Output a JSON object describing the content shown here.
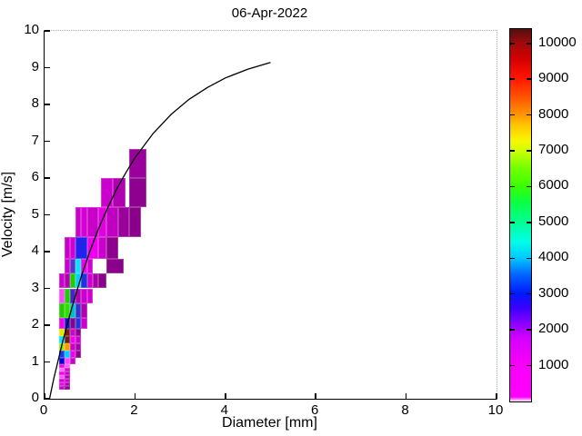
{
  "figure": {
    "title": "06-Apr-2022",
    "xlabel": "Diameter [mm]",
    "ylabel": "Velocity [m/s]"
  },
  "chart_data": {
    "type": "heatmap",
    "title": "06-Apr-2022",
    "xlabel": "Diameter [mm]",
    "ylabel": "Velocity [m/s]",
    "xlim": [
      0,
      10
    ],
    "ylim": [
      0,
      10
    ],
    "x_ticks": [
      0,
      2,
      4,
      6,
      8,
      10
    ],
    "y_ticks": [
      0,
      1,
      2,
      3,
      4,
      5,
      6,
      7,
      8,
      9,
      10
    ],
    "grid": false,
    "legend": "none",
    "colorbar": {
      "position": "right",
      "ticks": [
        1000,
        2000,
        3000,
        4000,
        5000,
        6000,
        7000,
        8000,
        9000,
        10000
      ],
      "vmin": 0,
      "vmax": 10400,
      "colormap_stops": [
        {
          "pos": 0.0,
          "color": "#ffffff"
        },
        {
          "pos": 0.012,
          "color": "#ff00ff"
        },
        {
          "pos": 0.1,
          "color": "#f800f8"
        },
        {
          "pos": 0.17,
          "color": "#d400ff"
        },
        {
          "pos": 0.21,
          "color": "#8800ff"
        },
        {
          "pos": 0.25,
          "color": "#3c00ff"
        },
        {
          "pos": 0.29,
          "color": "#0018ff"
        },
        {
          "pos": 0.34,
          "color": "#0064ff"
        },
        {
          "pos": 0.385,
          "color": "#00c8ff"
        },
        {
          "pos": 0.43,
          "color": "#00ffe6"
        },
        {
          "pos": 0.48,
          "color": "#00ff96"
        },
        {
          "pos": 0.54,
          "color": "#0eff3c"
        },
        {
          "pos": 0.58,
          "color": "#3cff00"
        },
        {
          "pos": 0.63,
          "color": "#78ff00"
        },
        {
          "pos": 0.67,
          "color": "#c8ff00"
        },
        {
          "pos": 0.7,
          "color": "#f8f800"
        },
        {
          "pos": 0.74,
          "color": "#ffc800"
        },
        {
          "pos": 0.77,
          "color": "#ff9600"
        },
        {
          "pos": 0.82,
          "color": "#ff5000"
        },
        {
          "pos": 0.87,
          "color": "#ff1400"
        },
        {
          "pos": 0.92,
          "color": "#d20000"
        },
        {
          "pos": 0.963,
          "color": "#a00a0a"
        },
        {
          "pos": 1.0,
          "color": "#501010"
        }
      ]
    },
    "cells": [
      {
        "d": [
          0.312,
          0.437
        ],
        "v": [
          0.25,
          0.35
        ],
        "color": "#c800c8"
      },
      {
        "d": [
          0.437,
          0.562
        ],
        "v": [
          0.25,
          0.35
        ],
        "color": "#8a008a"
      },
      {
        "d": [
          0.312,
          0.437
        ],
        "v": [
          0.35,
          0.45
        ],
        "color": "#ee00ee"
      },
      {
        "d": [
          0.437,
          0.562
        ],
        "v": [
          0.35,
          0.45
        ],
        "color": "#aa00aa"
      },
      {
        "d": [
          0.312,
          0.437
        ],
        "v": [
          0.45,
          0.55
        ],
        "color": "#d000d0"
      },
      {
        "d": [
          0.437,
          0.562
        ],
        "v": [
          0.45,
          0.55
        ],
        "color": "#c800c8"
      },
      {
        "d": [
          0.312,
          0.437
        ],
        "v": [
          0.55,
          0.65
        ],
        "color": "#ff4dff"
      },
      {
        "d": [
          0.437,
          0.562
        ],
        "v": [
          0.55,
          0.65
        ],
        "color": "#b000b0"
      },
      {
        "d": [
          0.312,
          0.437
        ],
        "v": [
          0.65,
          0.75
        ],
        "color": "#ee00ee"
      },
      {
        "d": [
          0.437,
          0.562
        ],
        "v": [
          0.65,
          0.75
        ],
        "color": "#c800c8"
      },
      {
        "d": [
          0.312,
          0.437
        ],
        "v": [
          0.75,
          0.85
        ],
        "color": "#ff66ff"
      },
      {
        "d": [
          0.437,
          0.562
        ],
        "v": [
          0.75,
          0.85
        ],
        "color": "#d000d0"
      },
      {
        "d": [
          0.312,
          0.437
        ],
        "v": [
          0.85,
          0.95
        ],
        "color": "#ee00ee"
      },
      {
        "d": [
          0.437,
          0.562
        ],
        "v": [
          0.85,
          0.95
        ],
        "color": "#ff55ff"
      },
      {
        "d": [
          0.312,
          0.437
        ],
        "v": [
          0.95,
          1.1
        ],
        "color": "#0000cc"
      },
      {
        "d": [
          0.437,
          0.562
        ],
        "v": [
          0.95,
          1.1
        ],
        "color": "#ff44ff"
      },
      {
        "d": [
          0.562,
          0.687
        ],
        "v": [
          0.95,
          1.1
        ],
        "color": "#c800c8"
      },
      {
        "d": [
          0.312,
          0.437
        ],
        "v": [
          1.1,
          1.3
        ],
        "color": "#2233ee"
      },
      {
        "d": [
          0.437,
          0.562
        ],
        "v": [
          1.1,
          1.3
        ],
        "color": "#00ccff"
      },
      {
        "d": [
          0.562,
          0.687
        ],
        "v": [
          1.1,
          1.3
        ],
        "color": "#ee00ee"
      },
      {
        "d": [
          0.687,
          0.812
        ],
        "v": [
          1.1,
          1.3
        ],
        "color": "#8a008a"
      },
      {
        "d": [
          0.312,
          0.437
        ],
        "v": [
          1.3,
          1.5
        ],
        "color": "#9ae600"
      },
      {
        "d": [
          0.437,
          0.562
        ],
        "v": [
          1.3,
          1.5
        ],
        "color": "#ff9900"
      },
      {
        "d": [
          0.562,
          0.687
        ],
        "v": [
          1.3,
          1.5
        ],
        "color": "#c800c8"
      },
      {
        "d": [
          0.687,
          0.812
        ],
        "v": [
          1.3,
          1.5
        ],
        "color": "#aa00aa"
      },
      {
        "d": [
          0.312,
          0.437
        ],
        "v": [
          1.5,
          1.7
        ],
        "color": "#00e6ff"
      },
      {
        "d": [
          0.437,
          0.562
        ],
        "v": [
          1.5,
          1.7
        ],
        "color": "#6b2015"
      },
      {
        "d": [
          0.562,
          0.687
        ],
        "v": [
          1.5,
          1.7
        ],
        "color": "#ee00ee"
      },
      {
        "d": [
          0.687,
          0.812
        ],
        "v": [
          1.5,
          1.7
        ],
        "color": "#c800c8"
      },
      {
        "d": [
          0.312,
          0.437
        ],
        "v": [
          1.7,
          1.9
        ],
        "color": "#e6e600"
      },
      {
        "d": [
          0.437,
          0.562
        ],
        "v": [
          1.7,
          1.9
        ],
        "color": "#6b2015"
      },
      {
        "d": [
          0.562,
          0.687
        ],
        "v": [
          1.7,
          1.9
        ],
        "color": "#cc00cc"
      },
      {
        "d": [
          0.687,
          0.812
        ],
        "v": [
          1.7,
          1.9
        ],
        "color": "#8a008a"
      },
      {
        "d": [
          0.312,
          0.437
        ],
        "v": [
          1.9,
          2.2
        ],
        "color": "#ee00ee"
      },
      {
        "d": [
          0.437,
          0.562
        ],
        "v": [
          1.9,
          2.2
        ],
        "color": "#1111cc"
      },
      {
        "d": [
          0.562,
          0.687
        ],
        "v": [
          1.9,
          2.2
        ],
        "color": "#8a008a"
      },
      {
        "d": [
          0.687,
          0.812
        ],
        "v": [
          1.9,
          2.2
        ],
        "color": "#2233dd"
      },
      {
        "d": [
          0.812,
          0.937
        ],
        "v": [
          1.9,
          2.2
        ],
        "color": "#cc00cc"
      },
      {
        "d": [
          0.312,
          0.437
        ],
        "v": [
          2.2,
          2.6
        ],
        "color": "#22cc00"
      },
      {
        "d": [
          0.437,
          0.562
        ],
        "v": [
          2.2,
          2.6
        ],
        "color": "#33dd00"
      },
      {
        "d": [
          0.562,
          0.687
        ],
        "v": [
          2.2,
          2.6
        ],
        "color": "#00bbcc"
      },
      {
        "d": [
          0.687,
          0.812
        ],
        "v": [
          2.2,
          2.6
        ],
        "color": "#3333cc"
      },
      {
        "d": [
          0.812,
          0.937
        ],
        "v": [
          2.2,
          2.6
        ],
        "color": "#b000b0"
      },
      {
        "d": [
          0.312,
          0.437
        ],
        "v": [
          2.6,
          3.0
        ],
        "color": "#ff44ff"
      },
      {
        "d": [
          0.437,
          0.562
        ],
        "v": [
          2.6,
          3.0
        ],
        "color": "#22cc00"
      },
      {
        "d": [
          0.562,
          0.687
        ],
        "v": [
          2.6,
          3.0
        ],
        "color": "#4422cc"
      },
      {
        "d": [
          0.687,
          0.812
        ],
        "v": [
          2.6,
          3.0
        ],
        "color": "#b000b0"
      },
      {
        "d": [
          0.812,
          0.937
        ],
        "v": [
          2.6,
          3.0
        ],
        "color": "#cc00cc"
      },
      {
        "d": [
          0.937,
          1.062
        ],
        "v": [
          2.6,
          3.0
        ],
        "color": "#d000d0"
      },
      {
        "d": [
          0.312,
          0.437
        ],
        "v": [
          3.0,
          3.4
        ],
        "color": "#cc00cc"
      },
      {
        "d": [
          0.437,
          0.562
        ],
        "v": [
          3.0,
          3.4
        ],
        "color": "#b000b0"
      },
      {
        "d": [
          0.562,
          0.687
        ],
        "v": [
          3.0,
          3.4
        ],
        "color": "#22cc00"
      },
      {
        "d": [
          0.687,
          0.812
        ],
        "v": [
          3.0,
          3.4
        ],
        "color": "#00ccff"
      },
      {
        "d": [
          0.812,
          0.937
        ],
        "v": [
          3.0,
          3.4
        ],
        "color": "#2233dd"
      },
      {
        "d": [
          0.937,
          1.062
        ],
        "v": [
          3.0,
          3.4
        ],
        "color": "#cc00cc"
      },
      {
        "d": [
          1.062,
          1.187
        ],
        "v": [
          3.0,
          3.4
        ],
        "color": "#aa00aa"
      },
      {
        "d": [
          1.187,
          1.375
        ],
        "v": [
          3.0,
          3.4
        ],
        "color": "#8a008a"
      },
      {
        "d": [
          0.437,
          0.562
        ],
        "v": [
          3.4,
          3.8
        ],
        "color": "#cc00cc"
      },
      {
        "d": [
          0.562,
          0.687
        ],
        "v": [
          3.4,
          3.8
        ],
        "color": "#5533cc"
      },
      {
        "d": [
          0.687,
          0.812
        ],
        "v": [
          3.4,
          3.8
        ],
        "color": "#00e6ff"
      },
      {
        "d": [
          0.812,
          0.937
        ],
        "v": [
          3.4,
          3.8
        ],
        "color": "#ee00ee"
      },
      {
        "d": [
          0.937,
          1.062
        ],
        "v": [
          3.4,
          3.8
        ],
        "color": "#d000d0"
      },
      {
        "d": [
          1.375,
          1.75
        ],
        "v": [
          3.4,
          3.8
        ],
        "color": "#8a008a"
      },
      {
        "d": [
          0.437,
          0.562
        ],
        "v": [
          3.8,
          4.4
        ],
        "color": "#c800c8"
      },
      {
        "d": [
          0.562,
          0.687
        ],
        "v": [
          3.8,
          4.4
        ],
        "color": "#d000d0"
      },
      {
        "d": [
          0.687,
          0.937
        ],
        "v": [
          3.8,
          4.4
        ],
        "color": "#2222ee"
      },
      {
        "d": [
          0.937,
          1.187
        ],
        "v": [
          3.8,
          4.4
        ],
        "color": "#ee00ee"
      },
      {
        "d": [
          1.187,
          1.375
        ],
        "v": [
          3.8,
          4.4
        ],
        "color": "#cc00cc"
      },
      {
        "d": [
          1.375,
          1.625
        ],
        "v": [
          3.8,
          4.4
        ],
        "color": "#8e008e"
      },
      {
        "d": [
          0.687,
          0.812
        ],
        "v": [
          4.4,
          5.2
        ],
        "color": "#cc00cc"
      },
      {
        "d": [
          0.812,
          0.937
        ],
        "v": [
          4.4,
          5.2
        ],
        "color": "#d400d4"
      },
      {
        "d": [
          0.937,
          1.187
        ],
        "v": [
          4.4,
          5.2
        ],
        "color": "#c800c8"
      },
      {
        "d": [
          1.187,
          1.375
        ],
        "v": [
          4.4,
          5.2
        ],
        "color": "#e000e0"
      },
      {
        "d": [
          1.375,
          1.625
        ],
        "v": [
          4.4,
          5.2
        ],
        "color": "#c000c0"
      },
      {
        "d": [
          1.625,
          1.875
        ],
        "v": [
          4.4,
          5.2
        ],
        "color": "#9a009a"
      },
      {
        "d": [
          1.875,
          2.125
        ],
        "v": [
          4.4,
          5.2
        ],
        "color": "#8a008a"
      },
      {
        "d": [
          1.25,
          1.5
        ],
        "v": [
          5.2,
          6.0
        ],
        "color": "#cc00cc"
      },
      {
        "d": [
          1.5,
          1.8
        ],
        "v": [
          5.2,
          6.0
        ],
        "color": "#b000b0"
      },
      {
        "d": [
          1.875,
          2.25
        ],
        "v": [
          5.2,
          6.0
        ],
        "color": "#8e008e"
      },
      {
        "d": [
          1.875,
          2.25
        ],
        "v": [
          6.0,
          6.8
        ],
        "color": "#9a009a"
      }
    ],
    "curve": {
      "name": "terminal velocity curve",
      "color": "#000000",
      "points": [
        [
          0.11,
          0.0
        ],
        [
          0.2,
          0.52
        ],
        [
          0.4,
          1.55
        ],
        [
          0.6,
          2.46
        ],
        [
          0.8,
          3.28
        ],
        [
          1.0,
          4.0
        ],
        [
          1.2,
          4.64
        ],
        [
          1.4,
          5.2
        ],
        [
          1.6,
          5.71
        ],
        [
          1.8,
          6.15
        ],
        [
          2.0,
          6.55
        ],
        [
          2.4,
          7.21
        ],
        [
          2.8,
          7.73
        ],
        [
          3.2,
          8.14
        ],
        [
          3.6,
          8.46
        ],
        [
          4.0,
          8.72
        ],
        [
          4.5,
          8.96
        ],
        [
          5.0,
          9.14
        ]
      ]
    }
  }
}
